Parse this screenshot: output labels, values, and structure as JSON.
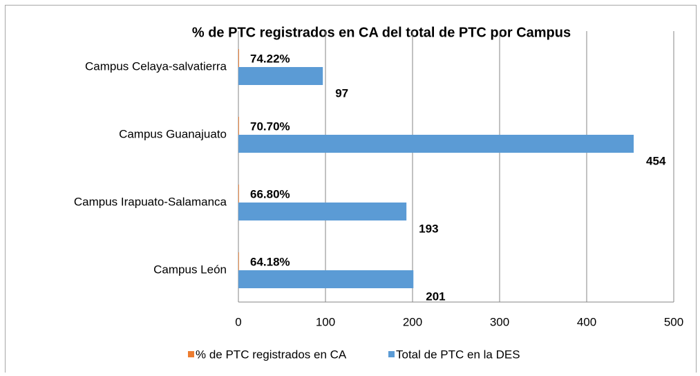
{
  "chart_data": {
    "type": "bar",
    "orientation": "horizontal",
    "title": "% de PTC registrados en CA del total de PTC por Campus",
    "categories": [
      "Campus Celaya-salvatierra",
      "Campus Guanajuato",
      "Campus Irapuato-Salamanca",
      "Campus León"
    ],
    "series": [
      {
        "name": "% de PTC registrados en CA",
        "color": "#ed7d31",
        "values": [
          0.7422,
          0.707,
          0.668,
          0.6418
        ],
        "value_labels": [
          "74.22%",
          "70.70%",
          "66.80%",
          "64.18%"
        ]
      },
      {
        "name": "Total de PTC  en la DES",
        "color": "#5b9bd5",
        "values": [
          97,
          454,
          193,
          201
        ]
      }
    ],
    "xlim": [
      0,
      500
    ],
    "xticks": [
      0,
      100,
      200,
      300,
      400,
      500
    ],
    "grid": true,
    "legend": "bottom"
  }
}
